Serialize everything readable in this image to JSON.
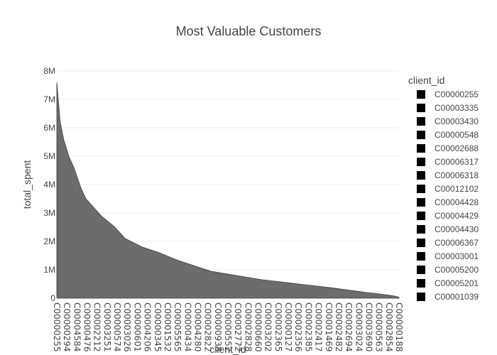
{
  "chart_data": {
    "type": "area",
    "title": "Most Valuable Customers",
    "xlabel": "client_id",
    "ylabel": "total_spent",
    "ylim": [
      0,
      8000000
    ],
    "yticks": [
      0,
      1000000,
      2000000,
      3000000,
      4000000,
      5000000,
      6000000,
      7000000,
      8000000
    ],
    "ytick_labels": [
      "0",
      "1M",
      "2M",
      "3M",
      "4M",
      "5M",
      "6M",
      "7M",
      "8M"
    ],
    "xtick_labels": [
      "C00000255",
      "C00000294",
      "C00004584",
      "C00000476",
      "C00002212",
      "C00003251",
      "C00000574",
      "C00003026",
      "C00000601",
      "C00004206",
      "C00000345",
      "C00001532",
      "C00005565",
      "C00000434",
      "C00004280",
      "C00002822",
      "C00000938",
      "C00000552",
      "C00002772",
      "C00002828",
      "C00000660",
      "C00003202",
      "C00002365",
      "C00000127",
      "C00002356",
      "C00002385",
      "C00002417",
      "C00001469",
      "C00002482",
      "C00002694",
      "C00003024",
      "C00003690",
      "C00000563",
      "C00002854",
      "C00000188"
    ],
    "curve_profile": {
      "x_fraction": [
        0,
        0.01,
        0.02,
        0.035,
        0.05,
        0.07,
        0.085,
        0.1,
        0.13,
        0.17,
        0.2,
        0.25,
        0.3,
        0.35,
        0.4,
        0.45,
        0.5,
        0.55,
        0.6,
        0.65,
        0.7,
        0.75,
        0.8,
        0.85,
        0.9,
        0.95,
        0.98,
        1.0
      ],
      "total_spent": [
        7600000,
        6200000,
        5600000,
        5000000,
        4600000,
        3900000,
        3500000,
        3300000,
        2900000,
        2500000,
        2100000,
        1800000,
        1600000,
        1350000,
        1150000,
        950000,
        850000,
        750000,
        650000,
        580000,
        510000,
        440000,
        370000,
        290000,
        210000,
        140000,
        90000,
        40000
      ]
    },
    "legend": {
      "title": "client_id",
      "position": "right",
      "entries": [
        "C00000255",
        "C00003335",
        "C00003430",
        "C00000548",
        "C00002688",
        "C00006317",
        "C00006318",
        "C00012102",
        "C00004428",
        "C00004429",
        "C00004430",
        "C00006367",
        "C00003001",
        "C00005200",
        "C00005201",
        "C00001039"
      ]
    },
    "colors": {
      "fill": "#6e6e6e",
      "edge": "#3c3c3c",
      "grid": "#eeeeee",
      "marker": "#000000"
    },
    "grid": true
  }
}
